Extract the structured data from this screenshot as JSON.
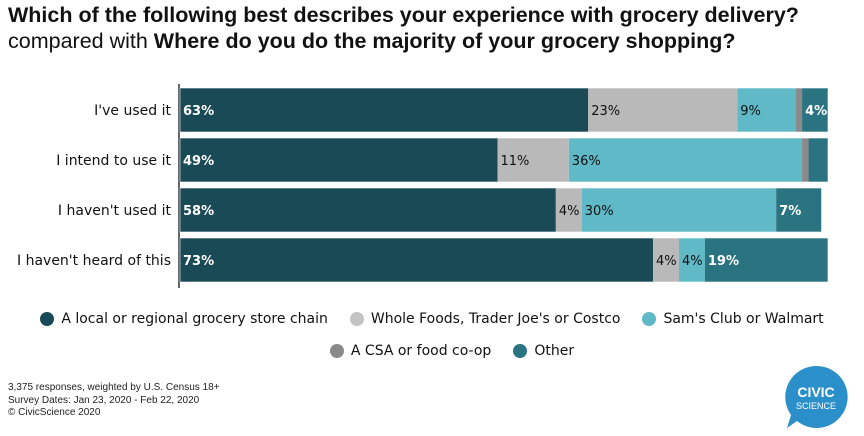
{
  "title": {
    "line1_bold": "Which of the following best describes your experience with grocery delivery?",
    "line2_prefix": "compared with ",
    "line2_bold": "Where do you do the majority of your grocery shopping?"
  },
  "chart_data": {
    "type": "bar",
    "orientation": "horizontal",
    "stacked": true,
    "categories": [
      "I've used it",
      "I intend to use it",
      "I haven't used it",
      "I haven't heard of this"
    ],
    "series": [
      {
        "name": "A local or regional grocery store chain",
        "color": "#1b4a57",
        "values": [
          63,
          49,
          58,
          73
        ],
        "labels": [
          "63%",
          "49%",
          "58%",
          "73%"
        ]
      },
      {
        "name": "Whole Foods, Trader Joe's or Costco",
        "color": "#b9b9b9",
        "values": [
          23,
          11,
          4,
          4
        ],
        "labels": [
          "23%",
          "11%",
          "4%",
          "4%"
        ]
      },
      {
        "name": "Sam's Club or Walmart",
        "color": "#5fb9c6",
        "values": [
          9,
          36,
          30,
          4
        ],
        "labels": [
          "9%",
          "36%",
          "30%",
          "4%"
        ]
      },
      {
        "name": "A CSA or food co-op",
        "color": "#8a8a8a",
        "values": [
          1,
          1,
          0,
          0
        ],
        "labels": [
          "",
          "",
          "",
          ""
        ]
      },
      {
        "name": "Other",
        "color": "#2a7380",
        "values": [
          4,
          3,
          7,
          19
        ],
        "labels": [
          "4%",
          "",
          "7%",
          "19%"
        ]
      }
    ],
    "xlim": [
      0,
      100
    ]
  },
  "legend": {
    "row1": [
      {
        "label": "A local or regional grocery store chain",
        "color": "#1b4a57"
      },
      {
        "label": "Whole Foods, Trader Joe's or Costco",
        "color": "#c4c4c4"
      },
      {
        "label": "Sam's Club or Walmart",
        "color": "#5fb9c6"
      }
    ],
    "row2": [
      {
        "label": "A CSA or food co-op",
        "color": "#8a8a8a"
      },
      {
        "label": "Other",
        "color": "#2a7380"
      }
    ]
  },
  "footer": {
    "line1": "3,375 responses, weighted by U.S. Census 18+",
    "line2": "Survey Dates: Jan 23, 2020 - Feb 22, 2020",
    "line3": "© CivicScience 2020"
  },
  "logo": {
    "line1": "CIVIC",
    "line2": "SCIENCE",
    "color": "#2b8fc9"
  }
}
